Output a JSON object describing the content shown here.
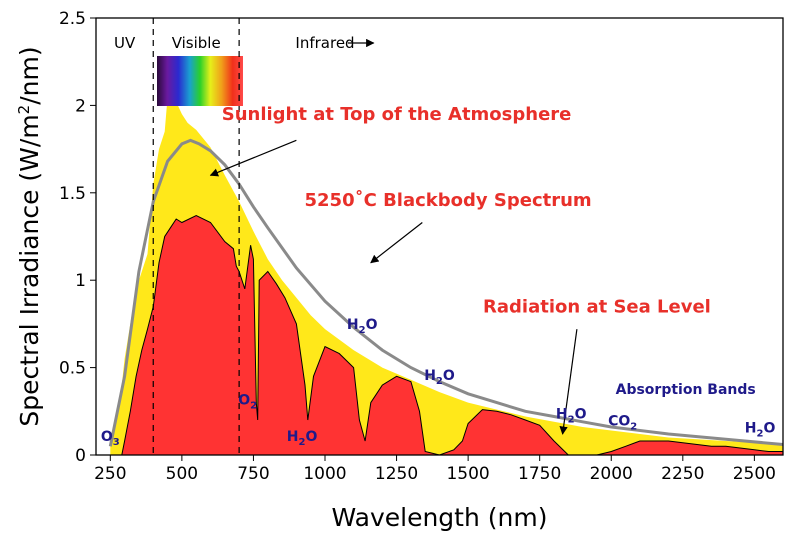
{
  "chart_data": {
    "type": "area",
    "title": "",
    "xlabel": "Wavelength (nm)",
    "ylabel": {
      "main": "Spectral Irradiance (W/m",
      "sup": "2",
      "tail": "/nm)"
    },
    "xlim": [
      200,
      2600
    ],
    "ylim": [
      0,
      2.5
    ],
    "x_ticks": [
      250,
      500,
      750,
      1000,
      1250,
      1500,
      1750,
      2000,
      2250,
      2500
    ],
    "y_ticks": [
      {
        "value": 0,
        "label": "0"
      },
      {
        "value": 0.5,
        "label": "0.5"
      },
      {
        "value": 1,
        "label": "1"
      },
      {
        "value": 1.5,
        "label": "1.5"
      },
      {
        "value": 2,
        "label": "2"
      },
      {
        "value": 2.5,
        "label": "2.5"
      }
    ],
    "colors": {
      "top": "#ffe81a",
      "sea": "#ff3333",
      "blackbody": "#8a8a8a",
      "annotation": "#e8302a",
      "molecule": "#1f1a8a"
    },
    "region_lines": [
      400,
      700
    ],
    "region_labels": [
      {
        "text": "UV",
        "x": 300
      },
      {
        "text": "Visible",
        "x": 550
      },
      {
        "text": "Infrared",
        "x": 1000
      }
    ],
    "series": [
      {
        "name": "Sunlight at Top of the Atmosphere",
        "x": [
          250,
          280,
          300,
          320,
          340,
          360,
          380,
          400,
          420,
          440,
          450,
          460,
          480,
          500,
          520,
          550,
          600,
          650,
          700,
          750,
          800,
          850,
          900,
          950,
          1000,
          1100,
          1200,
          1300,
          1400,
          1500,
          1600,
          1700,
          1800,
          1900,
          2000,
          2100,
          2200,
          2300,
          2400,
          2500,
          2600
        ],
        "y": [
          0.08,
          0.25,
          0.55,
          0.75,
          0.95,
          1.05,
          1.15,
          1.55,
          1.75,
          1.85,
          2.05,
          2.0,
          2.02,
          1.95,
          1.9,
          1.86,
          1.76,
          1.6,
          1.45,
          1.28,
          1.12,
          1.0,
          0.9,
          0.8,
          0.72,
          0.6,
          0.5,
          0.43,
          0.36,
          0.3,
          0.26,
          0.22,
          0.19,
          0.16,
          0.14,
          0.12,
          0.1,
          0.09,
          0.08,
          0.07,
          0.06
        ]
      },
      {
        "name": "5250˚C Blackbody Spectrum",
        "x": [
          250,
          300,
          350,
          400,
          450,
          500,
          530,
          560,
          600,
          650,
          700,
          750,
          800,
          900,
          1000,
          1100,
          1200,
          1300,
          1400,
          1500,
          1600,
          1700,
          1800,
          1900,
          2000,
          2200,
          2400,
          2600
        ],
        "y": [
          0.05,
          0.45,
          1.05,
          1.45,
          1.68,
          1.78,
          1.8,
          1.78,
          1.74,
          1.66,
          1.55,
          1.42,
          1.3,
          1.07,
          0.88,
          0.73,
          0.6,
          0.5,
          0.42,
          0.35,
          0.3,
          0.25,
          0.22,
          0.19,
          0.16,
          0.12,
          0.09,
          0.06
        ]
      },
      {
        "name": "Radiation at Sea Level",
        "x": [
          290,
          300,
          320,
          340,
          360,
          380,
          400,
          420,
          440,
          460,
          480,
          500,
          550,
          600,
          650,
          680,
          690,
          700,
          720,
          740,
          750,
          760,
          765,
          770,
          800,
          830,
          860,
          900,
          930,
          940,
          960,
          1000,
          1050,
          1100,
          1120,
          1140,
          1160,
          1200,
          1250,
          1300,
          1330,
          1350,
          1400,
          1450,
          1480,
          1500,
          1550,
          1600,
          1650,
          1700,
          1750,
          1800,
          1850,
          1900,
          1950,
          2000,
          2050,
          2100,
          2150,
          2200,
          2250,
          2300,
          2350,
          2400,
          2450,
          2500,
          2550,
          2600
        ],
        "y": [
          0.0,
          0.08,
          0.25,
          0.45,
          0.6,
          0.72,
          0.85,
          1.1,
          1.25,
          1.3,
          1.35,
          1.33,
          1.37,
          1.33,
          1.22,
          1.18,
          1.08,
          1.05,
          0.95,
          1.2,
          1.12,
          0.3,
          0.2,
          1.0,
          1.05,
          0.98,
          0.9,
          0.75,
          0.4,
          0.2,
          0.45,
          0.62,
          0.58,
          0.5,
          0.2,
          0.08,
          0.3,
          0.4,
          0.45,
          0.42,
          0.25,
          0.02,
          0.0,
          0.03,
          0.08,
          0.18,
          0.26,
          0.25,
          0.23,
          0.2,
          0.17,
          0.08,
          0.0,
          0.0,
          0.0,
          0.02,
          0.05,
          0.08,
          0.08,
          0.08,
          0.07,
          0.06,
          0.05,
          0.05,
          0.04,
          0.03,
          0.02,
          0.02
        ]
      }
    ],
    "annotations": [
      {
        "text": "Sunlight at Top of the Atmosphere",
        "anchor_x": 1250,
        "anchor_y": 1.95,
        "arrow_to": [
          600,
          1.6
        ]
      },
      {
        "text": "5250˚C Blackbody Spectrum",
        "anchor_x": 1430,
        "anchor_y": 1.46,
        "arrow_to": [
          1160,
          1.1
        ]
      },
      {
        "text": "Radiation at Sea Level",
        "anchor_x": 1950,
        "anchor_y": 0.85,
        "arrow_to": [
          1830,
          0.12
        ]
      }
    ],
    "absorption_labels": [
      {
        "base": "O",
        "sub": "3",
        "x": 250,
        "y": 0.08
      },
      {
        "base": "O",
        "sub": "2",
        "x": 730,
        "y": 0.29
      },
      {
        "base": "H",
        "sub": "2",
        "tail": "O",
        "x": 920,
        "y": 0.08
      },
      {
        "base": "H",
        "sub": "2",
        "tail": "O",
        "x": 1130,
        "y": 0.72
      },
      {
        "base": "H",
        "sub": "2",
        "tail": "O",
        "x": 1400,
        "y": 0.43
      },
      {
        "base": "H",
        "sub": "2",
        "tail": "O",
        "x": 1860,
        "y": 0.21
      },
      {
        "base": "CO",
        "sub": "2",
        "x": 2040,
        "y": 0.17
      },
      {
        "base": "H",
        "sub": "2",
        "tail": "O",
        "x": 2520,
        "y": 0.13
      }
    ],
    "absorption_title": {
      "text": "Absorption Bands",
      "x": 2260,
      "y": 0.35
    }
  }
}
